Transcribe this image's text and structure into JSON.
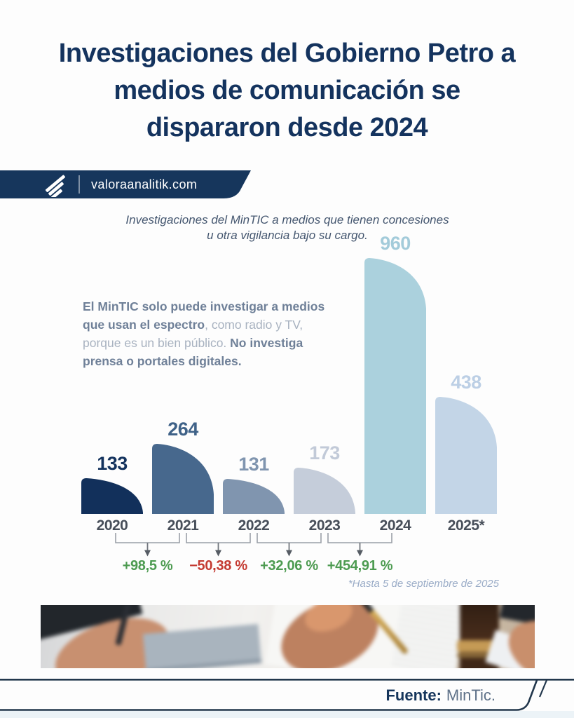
{
  "page": {
    "background": "#fdfdfd",
    "accent_navy": "#16365C"
  },
  "header": {
    "title_lines": [
      "Investigaciones del Gobierno Petro a",
      "medios de comunicación se",
      "dispararon desde 2024"
    ],
    "title_color": "#14335E"
  },
  "brand": {
    "site": "valoraanalitik.com",
    "banner_color": "#16365C",
    "logo_icon": "paper-plane-wing-icon"
  },
  "subtitle": {
    "line1": "Investigaciones del MinTIC a medios que tienen concesiones",
    "line2": "u otra vigilancia bajo su cargo."
  },
  "note": {
    "bold_1": "El MinTIC solo puede investigar a medios que usan el espectro",
    "regular": ", como radio y TV, porque es un bien público. ",
    "bold_2": "No investiga prensa o portales digitales."
  },
  "chart_data": {
    "type": "bar",
    "title": "Investigaciones del MinTIC a medios que tienen concesiones u otra vigilancia bajo su cargo.",
    "categories": [
      "2020",
      "2021",
      "2022",
      "2023",
      "2024",
      "2025*"
    ],
    "values": [
      133,
      264,
      131,
      173,
      960,
      438
    ],
    "bar_colors": [
      "#12305B",
      "#47688D",
      "#8095AF",
      "#C5CDDA",
      "#ABD1DD",
      "#C3D5E7"
    ],
    "label_colors": [
      "#14335E",
      "#3F6288",
      "#8095AF",
      "#C2CAD8",
      "#A3CBDA",
      "#BCCFE5"
    ],
    "ylim": [
      0,
      960
    ],
    "grid": false,
    "legend": "none",
    "changes": [
      {
        "from": "2020",
        "to": "2021",
        "label": "+98,5 %",
        "direction": "up",
        "color": "#4D9B51"
      },
      {
        "from": "2021",
        "to": "2022",
        "label": "−50,38 %",
        "direction": "down",
        "color": "#C43A31"
      },
      {
        "from": "2022",
        "to": "2023",
        "label": "+32,06 %",
        "direction": "up",
        "color": "#4D9B51"
      },
      {
        "from": "2023",
        "to": "2024",
        "label": "+454,91 %",
        "direction": "up",
        "color": "#4D9B51"
      }
    ],
    "footnote": "*Hasta 5 de septiembre de 2025"
  },
  "photo": {
    "description": "hands signing a document with pen, gavel on desk"
  },
  "footer": {
    "source_label": "Fuente:",
    "source_value": "MinTic."
  }
}
